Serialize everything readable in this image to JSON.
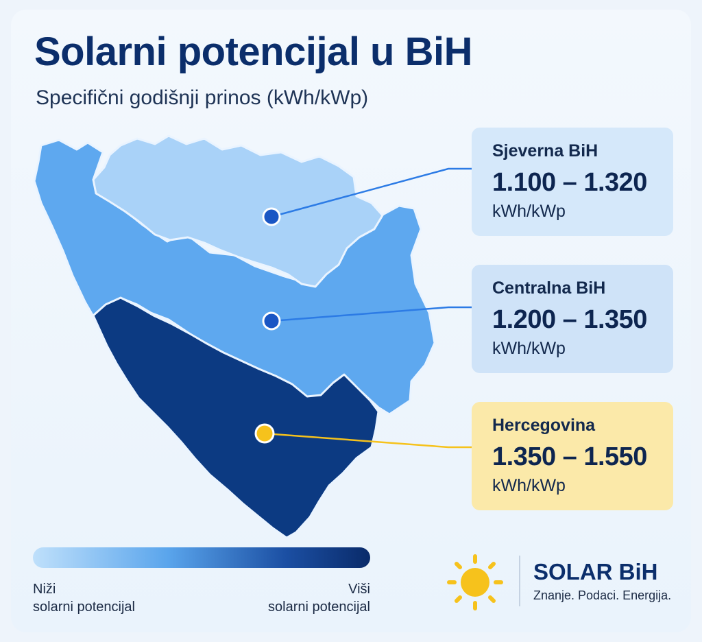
{
  "title": "Solarni potencijal u BiH",
  "subtitle": "Specifični godišnji prinos (kWh/kWp)",
  "colors": {
    "north": "#a9d2f8",
    "central": "#5ea8ef",
    "south": "#0c3a82",
    "accent_yellow": "#f6c21c",
    "marker_blue": "#1a56c4"
  },
  "regions": [
    {
      "id": "north",
      "name": "Sjeverna BiH",
      "range": "1.100 – 1.320",
      "unit": "kWh/kWp"
    },
    {
      "id": "central",
      "name": "Centralna BiH",
      "range": "1.200 – 1.350",
      "unit": "kWh/kWp"
    },
    {
      "id": "south",
      "name": "Hercegovina",
      "range": "1.350 – 1.550",
      "unit": "kWh/kWp"
    }
  ],
  "legend": {
    "low_line1": "Niži",
    "low_line2": "solarni potencijal",
    "high_line1": "Viši",
    "high_line2": "solarni potencijal"
  },
  "brand": {
    "name": "SOLAR BiH",
    "tagline": "Znanje. Podaci. Energija.",
    "icon": "sun-icon"
  }
}
